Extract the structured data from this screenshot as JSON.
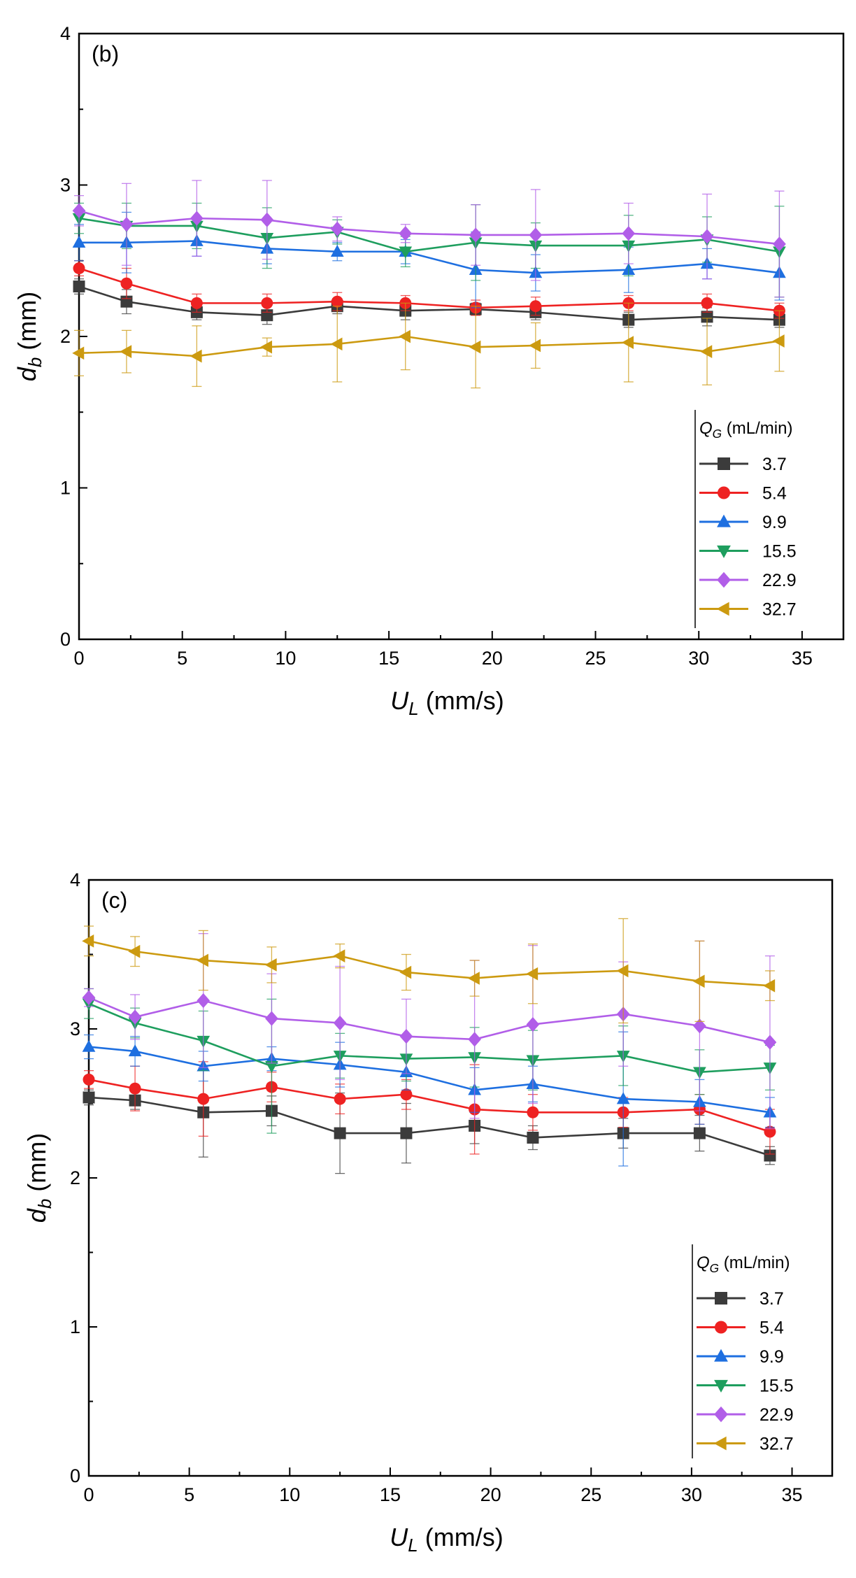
{
  "chart_data": [
    {
      "type": "line",
      "panel_label": "(b)",
      "xlabel": "U_L (mm/s)",
      "xlabel_main": "U",
      "xlabel_sub": "L",
      "xlabel_unit": " (mm/s)",
      "ylabel_main": "d",
      "ylabel_sub": "b",
      "ylabel_unit": " (mm)",
      "xlim": [
        0,
        37
      ],
      "ylim": [
        0,
        4
      ],
      "xticks": [
        0,
        5,
        10,
        15,
        20,
        25,
        30,
        35
      ],
      "yticks": [
        0,
        1,
        2,
        3,
        4
      ],
      "legend_title_main": "Q",
      "legend_title_sub": "G",
      "legend_title_unit": " (mL/min)",
      "legend_position": "right",
      "x": [
        0,
        2.3,
        5.7,
        9.1,
        12.5,
        15.8,
        19.2,
        22.1,
        26.6,
        30.4,
        33.9
      ],
      "series": [
        {
          "name": "3.7",
          "color": "#3b3b3b",
          "marker": "square",
          "values": [
            2.33,
            2.23,
            2.16,
            2.14,
            2.2,
            2.17,
            2.18,
            2.16,
            2.11,
            2.13,
            2.11
          ],
          "err": [
            0.05,
            0.08,
            0.05,
            0.06,
            0.05,
            0.06,
            0.04,
            0.05,
            0.05,
            0.06,
            0.05
          ]
        },
        {
          "name": "5.4",
          "color": "#ee2222",
          "marker": "circle",
          "values": [
            2.45,
            2.35,
            2.22,
            2.22,
            2.23,
            2.22,
            2.19,
            2.2,
            2.22,
            2.22,
            2.17
          ],
          "err": [
            0.05,
            0.1,
            0.06,
            0.06,
            0.06,
            0.05,
            0.05,
            0.06,
            0.05,
            0.06,
            0.05
          ]
        },
        {
          "name": "9.9",
          "color": "#1e6fe0",
          "marker": "triangle-up",
          "values": [
            2.62,
            2.62,
            2.63,
            2.58,
            2.56,
            2.56,
            2.44,
            2.42,
            2.44,
            2.48,
            2.42
          ],
          "err": [
            0.12,
            0.2,
            0.1,
            0.1,
            0.06,
            0.08,
            0.25,
            0.12,
            0.15,
            0.1,
            0.18
          ]
        },
        {
          "name": "15.5",
          "color": "#1e9e5e",
          "marker": "triangle-down",
          "values": [
            2.78,
            2.73,
            2.73,
            2.65,
            2.69,
            2.56,
            2.62,
            2.6,
            2.6,
            2.64,
            2.56
          ],
          "err": [
            0.1,
            0.15,
            0.15,
            0.2,
            0.08,
            0.1,
            0.25,
            0.15,
            0.2,
            0.15,
            0.3
          ]
        },
        {
          "name": "22.9",
          "color": "#b15ee8",
          "marker": "diamond",
          "values": [
            2.83,
            2.74,
            2.78,
            2.77,
            2.71,
            2.68,
            2.67,
            2.67,
            2.68,
            2.66,
            2.61
          ],
          "err": [
            0.1,
            0.27,
            0.25,
            0.26,
            0.08,
            0.06,
            0.2,
            0.3,
            0.2,
            0.28,
            0.35
          ]
        },
        {
          "name": "32.7",
          "color": "#cc9a10",
          "marker": "triangle-left",
          "values": [
            1.89,
            1.9,
            1.87,
            1.93,
            1.95,
            2.0,
            1.93,
            1.94,
            1.96,
            1.9,
            1.97
          ],
          "err": [
            0.15,
            0.14,
            0.2,
            0.06,
            0.25,
            0.22,
            0.27,
            0.15,
            0.26,
            0.22,
            0.2
          ]
        }
      ]
    },
    {
      "type": "line",
      "panel_label": "(c)",
      "xlabel": "U_L (mm/s)",
      "xlabel_main": "U",
      "xlabel_sub": "L",
      "xlabel_unit": " (mm/s)",
      "ylabel_main": "d",
      "ylabel_sub": "b",
      "ylabel_unit": " (mm)",
      "xlim": [
        0,
        37
      ],
      "ylim": [
        0,
        4
      ],
      "xticks": [
        0,
        5,
        10,
        15,
        20,
        25,
        30,
        35
      ],
      "yticks": [
        0,
        1,
        2,
        3,
        4
      ],
      "legend_title_main": "Q",
      "legend_title_sub": "G",
      "legend_title_unit": " (mL/min)",
      "legend_position": "right",
      "x": [
        0,
        2.3,
        5.7,
        9.1,
        12.5,
        15.8,
        19.2,
        22.1,
        26.6,
        30.4,
        33.9
      ],
      "series": [
        {
          "name": "3.7",
          "color": "#3b3b3b",
          "marker": "square",
          "values": [
            2.54,
            2.52,
            2.44,
            2.45,
            2.3,
            2.3,
            2.35,
            2.27,
            2.3,
            2.3,
            2.15
          ],
          "err": [
            0.05,
            0.06,
            0.3,
            0.1,
            0.27,
            0.2,
            0.12,
            0.08,
            0.1,
            0.12,
            0.06
          ]
        },
        {
          "name": "5.4",
          "color": "#ee2222",
          "marker": "circle",
          "values": [
            2.66,
            2.6,
            2.53,
            2.61,
            2.53,
            2.56,
            2.46,
            2.44,
            2.44,
            2.46,
            2.31
          ],
          "err": [
            0.06,
            0.15,
            0.25,
            0.1,
            0.1,
            0.1,
            0.3,
            0.12,
            0.1,
            0.1,
            0.15
          ]
        },
        {
          "name": "9.9",
          "color": "#1e6fe0",
          "marker": "triangle-up",
          "values": [
            2.88,
            2.85,
            2.75,
            2.8,
            2.76,
            2.71,
            2.59,
            2.63,
            2.53,
            2.51,
            2.44
          ],
          "err": [
            0.08,
            0.1,
            0.1,
            0.08,
            0.15,
            0.12,
            0.15,
            0.12,
            0.45,
            0.15,
            0.1
          ]
        },
        {
          "name": "15.5",
          "color": "#1e9e5e",
          "marker": "triangle-down",
          "values": [
            3.17,
            3.04,
            2.92,
            2.75,
            2.82,
            2.8,
            2.81,
            2.79,
            2.82,
            2.71,
            2.74
          ],
          "err": [
            0.1,
            0.1,
            0.2,
            0.45,
            0.15,
            0.15,
            0.2,
            0.2,
            0.2,
            0.15,
            0.15
          ]
        },
        {
          "name": "22.9",
          "color": "#b15ee8",
          "marker": "diamond",
          "values": [
            3.21,
            3.08,
            3.19,
            3.07,
            3.04,
            2.95,
            2.93,
            3.03,
            3.1,
            3.02,
            2.91
          ],
          "err": [
            0.06,
            0.15,
            0.45,
            0.3,
            0.38,
            0.25,
            0.53,
            0.53,
            0.35,
            0.57,
            0.58
          ]
        },
        {
          "name": "32.7",
          "color": "#cc9a10",
          "marker": "triangle-left",
          "values": [
            3.59,
            3.52,
            3.46,
            3.43,
            3.49,
            3.38,
            3.34,
            3.37,
            3.39,
            3.32,
            3.29
          ],
          "err": [
            0.1,
            0.1,
            0.2,
            0.12,
            0.08,
            0.12,
            0.12,
            0.2,
            0.35,
            0.27,
            0.1
          ]
        }
      ]
    }
  ]
}
